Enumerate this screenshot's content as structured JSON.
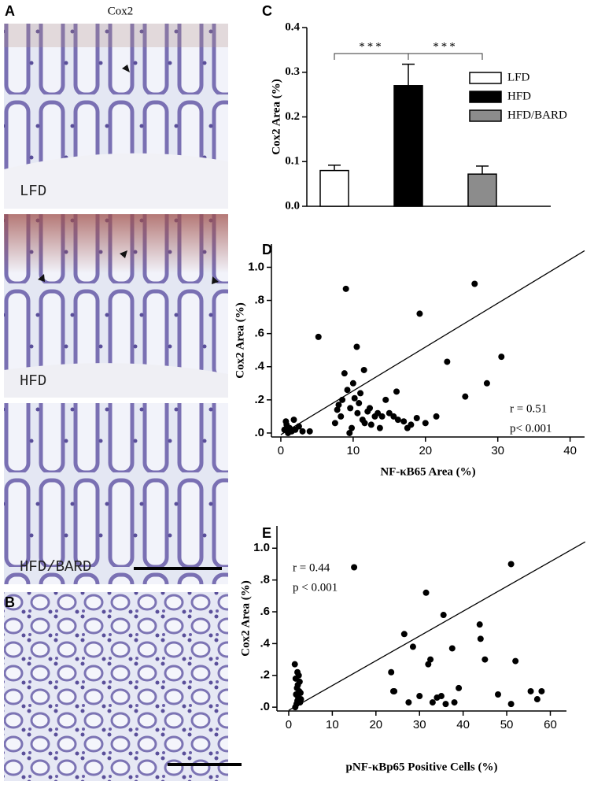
{
  "panels": {
    "A": "A",
    "B": "B",
    "C": "C",
    "D": "D",
    "E": "E"
  },
  "micrographs": {
    "title": "Cox2",
    "labels": [
      "LFD",
      "HFD",
      "HFD/BARD"
    ]
  },
  "chart_data": [
    {
      "type": "bar",
      "ylabel": "Cox2 Area (%)",
      "categories": [
        "LFD",
        "HFD",
        "HFD/BARD"
      ],
      "values": [
        0.08,
        0.27,
        0.072
      ],
      "errors": [
        0.012,
        0.048,
        0.018
      ],
      "colors": [
        "#ffffff",
        "#000000",
        "#8c8c8c"
      ],
      "ylim": [
        0,
        0.4
      ],
      "yticks": [
        {
          "value": 0,
          "label": "0.0"
        },
        0.1,
        0.2,
        0.3,
        0.4
      ],
      "annotations": [
        "***",
        "***"
      ],
      "legend": "right"
    },
    {
      "type": "scatter",
      "xlabel": "NF-κB65 Area (%)",
      "ylabel": "Cox2 Area (%)",
      "color": "#000000",
      "x": [
        0.5,
        0.8,
        1,
        1.2,
        1.5,
        2,
        2.5,
        0.7,
        3,
        1.8,
        4,
        5.2,
        7.5,
        7.8,
        8,
        8.3,
        8.5,
        8.8,
        9,
        9.2,
        9.5,
        9.6,
        9.8,
        10,
        10.2,
        10.5,
        10.6,
        10.8,
        11,
        11.3,
        11.5,
        11.6,
        12,
        12.3,
        12.5,
        13,
        13.4,
        13.7,
        14,
        14.5,
        15,
        15.6,
        16,
        16.2,
        17,
        17.5,
        18,
        18.8,
        19.2,
        20,
        21.5,
        23,
        25.5,
        26.8,
        28.5,
        30.5
      ],
      "values": [
        0.02,
        0.05,
        0,
        0.03,
        0.01,
        0.02,
        0.04,
        0.07,
        0.01,
        0.08,
        0.01,
        0.58,
        0.06,
        0.14,
        0.17,
        0.1,
        0.2,
        0.36,
        0.87,
        0.26,
        0,
        0.15,
        0.03,
        0.3,
        0.21,
        0.52,
        0.12,
        0.18,
        0.24,
        0.08,
        0.38,
        0.06,
        0.13,
        0.15,
        0.05,
        0.1,
        0.12,
        0.03,
        0.1,
        0.2,
        0.12,
        0.1,
        0.25,
        0.08,
        0.07,
        0.03,
        0.05,
        0.09,
        0.72,
        0.06,
        0.1,
        0.43,
        0.22,
        0.9,
        0.3,
        0.46
      ],
      "trend_line": {
        "x": [
          0,
          42
        ],
        "y": [
          -0.01,
          1.1
        ]
      },
      "xlim": [
        -1.3,
        42
      ],
      "xticks": [
        0,
        10,
        20,
        30,
        40
      ],
      "ylim": [
        -0.024,
        1.14
      ],
      "yticks": [
        {
          "value": 0,
          "label": ".0"
        },
        {
          "value": 0.2,
          "label": ".2"
        },
        {
          "value": 0.4,
          "label": ".4"
        },
        {
          "value": 0.6,
          "label": ".6"
        },
        {
          "value": 0.8,
          "label": ".8"
        },
        {
          "value": 1,
          "label": "1.0"
        }
      ],
      "annotations": [
        "r = 0.51",
        "p< 0.001"
      ]
    },
    {
      "type": "scatter",
      "xlabel": "pNF-κBp65 Positive Cells (%)",
      "ylabel": "Cox2 Area (%)",
      "color": "#000000",
      "x": [
        1.5,
        1.8,
        2,
        2.2,
        1.7,
        2.4,
        1.9,
        2.1,
        2.5,
        1.6,
        2.3,
        2.6,
        2.8,
        1.4,
        2,
        2.7,
        15,
        23.5,
        24,
        24.2,
        26.5,
        27.5,
        28.5,
        30,
        31.5,
        32,
        32.5,
        33,
        34,
        35,
        35.5,
        36,
        37.5,
        38,
        39,
        43.8,
        44,
        45,
        48,
        51,
        52,
        51,
        55.5,
        57,
        58
      ],
      "values": [
        0,
        0.02,
        0.04,
        0.06,
        0.08,
        0.1,
        0.12,
        0.14,
        0.16,
        0.18,
        0.2,
        0.03,
        0.05,
        0.27,
        0.22,
        0.09,
        0.88,
        0.22,
        0.1,
        0.1,
        0.46,
        0.03,
        0.38,
        0.07,
        0.72,
        0.27,
        0.3,
        0.03,
        0.06,
        0.07,
        0.58,
        0.02,
        0.37,
        0.03,
        0.12,
        0.52,
        0.43,
        0.3,
        0.08,
        0.9,
        0.29,
        0.02,
        0.1,
        0.05,
        0.1
      ],
      "trend_line": {
        "x": [
          0,
          68
        ],
        "y": [
          -0.02,
          1.04
        ]
      },
      "xlim": [
        -2.7,
        63.7
      ],
      "xticks": [
        0,
        10,
        20,
        30,
        40,
        50,
        60
      ],
      "ylim": [
        -0.024,
        1.14
      ],
      "yticks": [
        {
          "value": 0,
          "label": ".0"
        },
        {
          "value": 0.2,
          "label": ".2"
        },
        {
          "value": 0.4,
          "label": ".4"
        },
        {
          "value": 0.6,
          "label": ".6"
        },
        {
          "value": 0.8,
          "label": ".8"
        },
        {
          "value": 1,
          "label": "1.0"
        }
      ],
      "annotations": [
        "r = 0.44",
        "p < 0.001"
      ]
    }
  ]
}
